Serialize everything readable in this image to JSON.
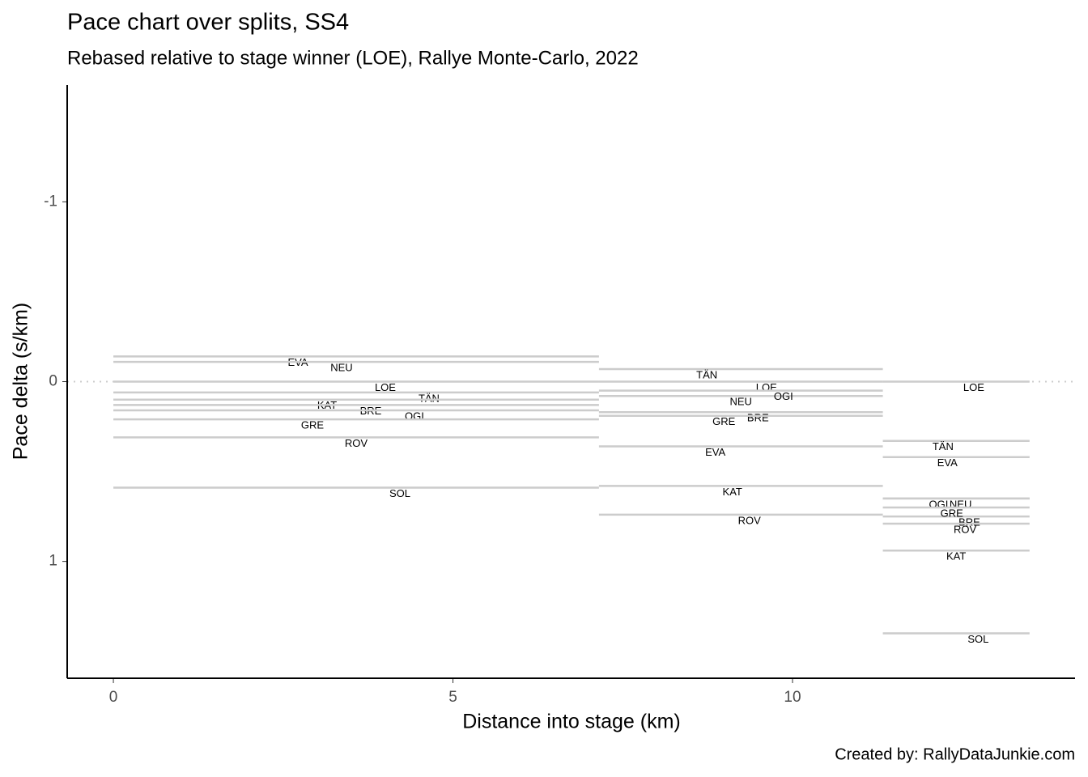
{
  "chart_data": {
    "type": "segments",
    "title": "Pace chart over splits, SS4",
    "subtitle": "Rebased relative to stage winner (LOE), Rallye Monte-Carlo, 2022",
    "x_label": "Distance into stage (km)",
    "y_label": "Pace delta (s/km)",
    "caption": "Created by: RallyDataJunkie.com",
    "split_edges": [
      0,
      7.15,
      11.33,
      13.49
    ],
    "series": [
      {
        "name": "EVA",
        "values": [
          -0.14,
          0.36,
          0.42
        ]
      },
      {
        "name": "NEU",
        "values": [
          -0.11,
          0.08,
          0.65
        ]
      },
      {
        "name": "LOE",
        "values": [
          0,
          0,
          0
        ]
      },
      {
        "name": "TÄN",
        "values": [
          0.06,
          -0.07,
          0.33
        ]
      },
      {
        "name": "KAT",
        "values": [
          0.1,
          0.58,
          0.94
        ]
      },
      {
        "name": "BRE",
        "values": [
          0.13,
          0.17,
          0.75
        ]
      },
      {
        "name": "OGI",
        "values": [
          0.16,
          0.05,
          0.65
        ]
      },
      {
        "name": "GRE",
        "values": [
          0.21,
          0.19,
          0.7
        ]
      },
      {
        "name": "ROV",
        "values": [
          0.31,
          0.74,
          0.79
        ]
      },
      {
        "name": "SOL",
        "values": [
          0.59,
          null,
          1.4
        ]
      }
    ],
    "color": "#cccccc",
    "reference_line": 0,
    "xlim": [
      -0.68,
      14.16
    ],
    "ylim": [
      -1.65,
      1.65
    ],
    "y_reversed": true,
    "xticks": [
      0,
      5,
      10
    ],
    "yticks": [
      -1,
      0,
      1
    ]
  }
}
